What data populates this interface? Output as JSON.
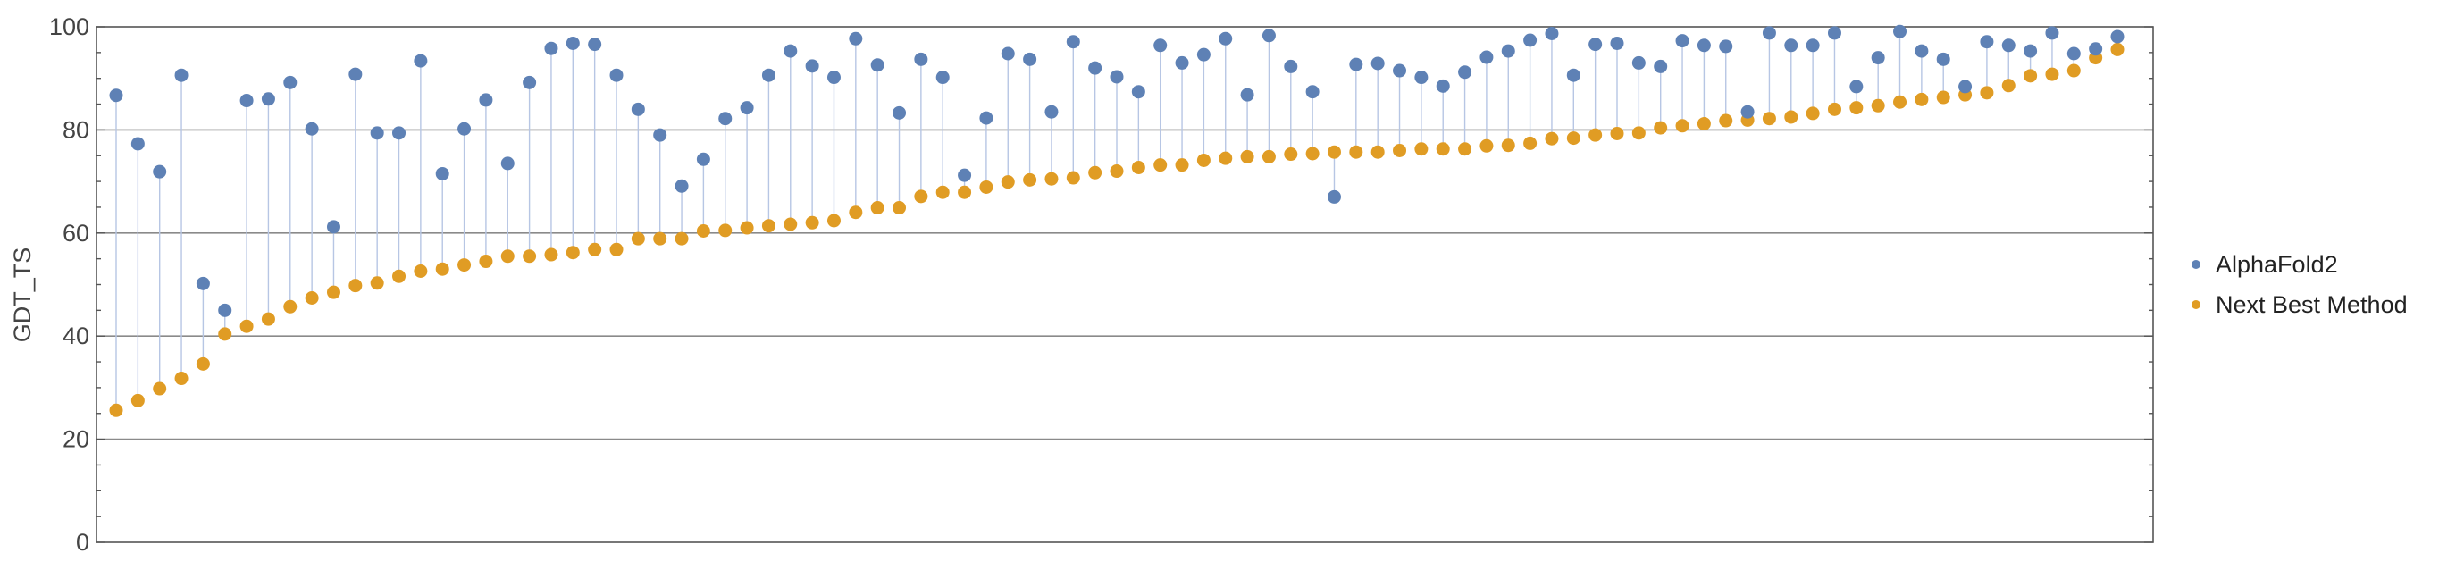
{
  "chart_data": {
    "type": "scatter",
    "title": "",
    "xlabel": "",
    "ylabel": "GDT_TS",
    "ylim": [
      0,
      100
    ],
    "yticks": [
      0,
      20,
      40,
      60,
      80,
      100
    ],
    "grid": "horizontal at y ticks",
    "legend_position": "right",
    "series": [
      {
        "name": "AlphaFold2",
        "color": "#5e81b5",
        "values": [
          86.7,
          77.3,
          71.9,
          90.6,
          50.2,
          45.0,
          85.7,
          86.0,
          89.2,
          80.2,
          61.2,
          90.8,
          79.4,
          79.4,
          93.4,
          71.5,
          80.2,
          85.8,
          73.5,
          89.2,
          95.8,
          96.8,
          96.6,
          90.6,
          84.0,
          79.0,
          69.1,
          74.3,
          82.2,
          84.3,
          90.6,
          95.3,
          92.4,
          90.2,
          97.7,
          92.6,
          83.3,
          93.7,
          90.2,
          71.2,
          82.3,
          94.8,
          93.7,
          83.5,
          97.1,
          92.0,
          90.3,
          87.4,
          96.4,
          93.0,
          94.6,
          97.7,
          86.8,
          98.3,
          92.3,
          87.4,
          67.0,
          92.7,
          92.9,
          91.5,
          90.2,
          88.5,
          91.2,
          94.1,
          95.3,
          97.4,
          98.7,
          90.6,
          96.6,
          96.8,
          93.0,
          92.3,
          97.3,
          96.4,
          96.2,
          83.5,
          98.8,
          96.4,
          96.4,
          98.8,
          88.4,
          94.0,
          99.1,
          95.3,
          93.7,
          88.4,
          97.1,
          96.4,
          95.3,
          98.8,
          94.8,
          95.7,
          98.1
        ]
      },
      {
        "name": "Next Best Method",
        "color": "#e09c24",
        "values": [
          25.6,
          27.5,
          29.8,
          31.8,
          34.6,
          40.4,
          41.9,
          43.3,
          45.7,
          47.4,
          48.5,
          49.8,
          50.3,
          51.6,
          52.6,
          53.0,
          53.8,
          54.5,
          55.5,
          55.5,
          55.8,
          56.2,
          56.8,
          56.8,
          58.9,
          58.9,
          58.9,
          60.4,
          60.5,
          61.0,
          61.4,
          61.7,
          62.0,
          62.4,
          64.0,
          64.9,
          64.9,
          67.1,
          67.9,
          67.9,
          68.9,
          69.9,
          70.3,
          70.5,
          70.7,
          71.7,
          72.0,
          72.7,
          73.2,
          73.2,
          74.1,
          74.5,
          74.8,
          74.8,
          75.3,
          75.4,
          75.7,
          75.7,
          75.7,
          76.0,
          76.3,
          76.3,
          76.3,
          76.9,
          77.0,
          77.4,
          78.3,
          78.4,
          79.0,
          79.3,
          79.4,
          80.4,
          80.8,
          81.2,
          81.8,
          81.9,
          82.2,
          82.5,
          83.2,
          84.0,
          84.3,
          84.7,
          85.4,
          85.9,
          86.3,
          86.8,
          87.2,
          88.6,
          90.5,
          90.8,
          91.5,
          94.0,
          95.6
        ]
      }
    ]
  }
}
